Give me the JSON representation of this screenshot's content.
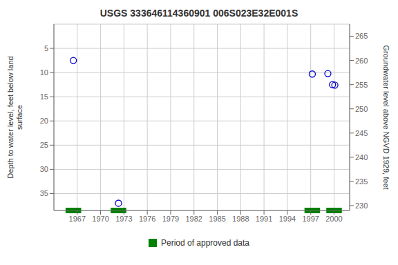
{
  "chart_data": {
    "type": "scatter",
    "title": "USGS 333646114360901 006S023E32E001S",
    "y_label": "Depth to water level, feet below land\nsurface",
    "y2_label": "Groundwater level above NGVD 1929, feet",
    "x": [
      1966.5,
      1972.3,
      1997.2,
      1999.2,
      1999.8,
      2000.1
    ],
    "values": [
      7.5,
      37.0,
      10.3,
      10.2,
      12.5,
      12.6
    ],
    "color": "#0000cc",
    "marker": "circle",
    "approved_periods": {
      "name": "Period of approved data",
      "color": "#008000",
      "ranges": [
        [
          1965.5,
          1967.5
        ],
        [
          1971.3,
          1973.3
        ],
        [
          1996.2,
          1998.2
        ],
        [
          1999.0,
          2001.0
        ]
      ]
    },
    "xlim": [
      1964,
      2002
    ],
    "xticks": [
      1967,
      1970,
      1973,
      1976,
      1979,
      1982,
      1985,
      1988,
      1991,
      1994,
      1997,
      2000
    ],
    "ylim": [
      38.5,
      0
    ],
    "yticks": [
      5,
      10,
      15,
      20,
      25,
      30,
      35
    ],
    "y2lim": [
      229,
      267.5
    ],
    "y2ticks": [
      230,
      235,
      240,
      245,
      250,
      255,
      260,
      265
    ],
    "grid": true,
    "legend": "bottom"
  }
}
